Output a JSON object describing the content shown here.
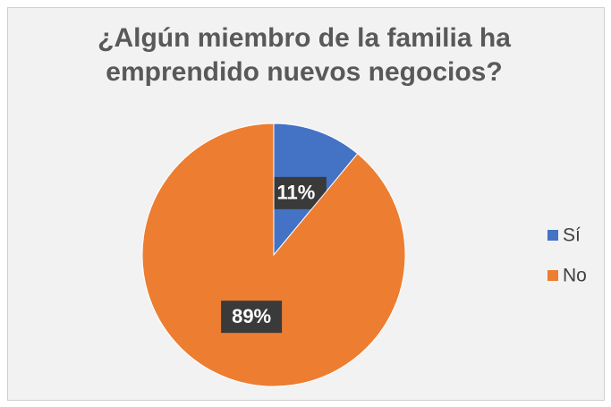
{
  "chart_data": {
    "type": "pie",
    "title": "¿Algún miembro de la familia ha emprendido nuevos negocios?",
    "categories": [
      "Sí",
      "No"
    ],
    "values": [
      11,
      89
    ],
    "value_labels": [
      "11%",
      "89%"
    ],
    "colors": [
      "#4472c4",
      "#ed7d31"
    ],
    "legend": "right"
  }
}
